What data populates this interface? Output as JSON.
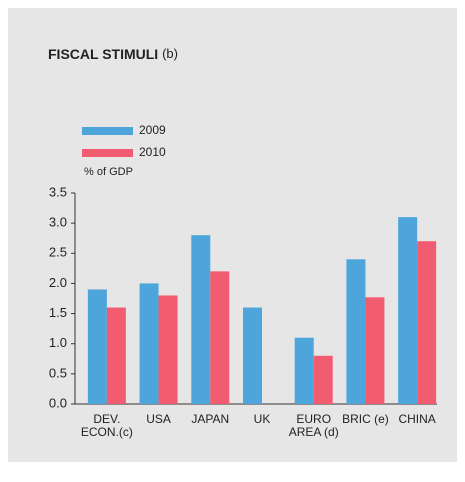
{
  "chart_data": {
    "type": "bar",
    "title": "FISCAL STIMULI",
    "title_note": "(b)",
    "y_label": "% of GDP",
    "categories": [
      [
        "DEV.",
        "ECON.(c)"
      ],
      [
        "USA"
      ],
      [
        "JAPAN"
      ],
      [
        "UK"
      ],
      [
        "EURO",
        "AREA (d)"
      ],
      [
        "BRIC (e)"
      ],
      [
        "CHINA"
      ]
    ],
    "series": [
      {
        "name": "2009",
        "color": "#4ea5dc",
        "values": [
          1.9,
          2.0,
          2.8,
          1.6,
          1.1,
          2.4,
          3.1
        ]
      },
      {
        "name": "2010",
        "color": "#f25c70",
        "values": [
          1.6,
          1.8,
          2.2,
          null,
          0.8,
          1.77,
          2.7
        ]
      }
    ],
    "ylim": [
      0,
      3.5
    ],
    "yticks": [
      {
        "value": 0,
        "label": "0.0"
      },
      0.5,
      {
        "value": 1,
        "label": "1.0"
      },
      1.5,
      {
        "value": 2,
        "label": "2.0"
      },
      2.5,
      {
        "value": 3,
        "label": "3.0"
      },
      3.5
    ],
    "grid": false
  }
}
